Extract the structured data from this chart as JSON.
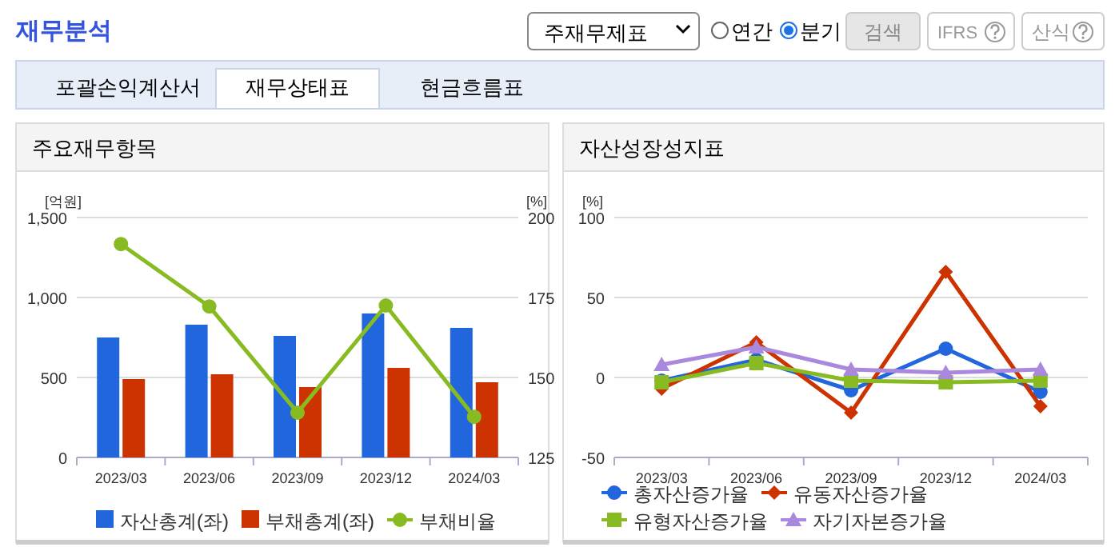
{
  "chart_data": [
    {
      "type": "other",
      "title": "재무분석",
      "annotations": [
        "주재무제표",
        "연간",
        "분기",
        "검색",
        "IFRS",
        "산식",
        "포괄손익계산서",
        "재무상태표",
        "현금흐름표"
      ]
    },
    {
      "type": "bar",
      "title": "주요재무항목",
      "categories": [
        "2023/03",
        "2023/06",
        "2023/09",
        "2023/12",
        "2024/03"
      ],
      "ylabel": "[억원]",
      "y2label": "[%]",
      "ylim": [
        0,
        1500
      ],
      "yticks": [
        0,
        500,
        {
          "value": 1000,
          "label": "1,000"
        },
        {
          "value": 1500,
          "label": "1,500"
        }
      ],
      "y2lim": [
        125,
        200
      ],
      "y2ticks": [
        125,
        150,
        175,
        200
      ],
      "grid": "y",
      "legend": "bottom",
      "series": [
        {
          "name": "자산총계(좌)",
          "color": "#2266dd",
          "values": [
            750,
            830,
            760,
            900,
            810
          ]
        },
        {
          "name": "부채총계(좌)",
          "color": "#cc3300",
          "values": [
            490,
            520,
            440,
            560,
            470
          ]
        },
        {
          "name": "부채비율",
          "type": "line",
          "axis": "y2",
          "marker": "circle",
          "color": "#88bb22",
          "values": [
            191.7,
            172.2,
            139,
            172.5,
            137.7
          ]
        }
      ]
    },
    {
      "type": "line",
      "title": "자산성장성지표",
      "categories": [
        "2023/03",
        "2023/06",
        "2023/09",
        "2023/12",
        "2024/03"
      ],
      "ylabel": "[%]",
      "ylim": [
        -50,
        100
      ],
      "yticks": [
        -50,
        0,
        50,
        100
      ],
      "grid": "y",
      "legend": "bottom",
      "series": [
        {
          "name": "총자산증가율",
          "color": "#2266dd",
          "marker": "circle",
          "values": [
            -2,
            11,
            -8,
            18,
            -9
          ]
        },
        {
          "name": "유동자산증가율",
          "color": "#cc3300",
          "marker": "diamond",
          "values": [
            -7,
            22,
            -22,
            66,
            -18
          ]
        },
        {
          "name": "유형자산증가율",
          "color": "#88bb22",
          "marker": "square",
          "values": [
            -3,
            9,
            -2,
            -3,
            -2
          ]
        },
        {
          "name": "자기자본증가율",
          "color": "#aa88dd",
          "marker": "triangle",
          "values": [
            8,
            19,
            5,
            3,
            5
          ]
        }
      ]
    }
  ]
}
